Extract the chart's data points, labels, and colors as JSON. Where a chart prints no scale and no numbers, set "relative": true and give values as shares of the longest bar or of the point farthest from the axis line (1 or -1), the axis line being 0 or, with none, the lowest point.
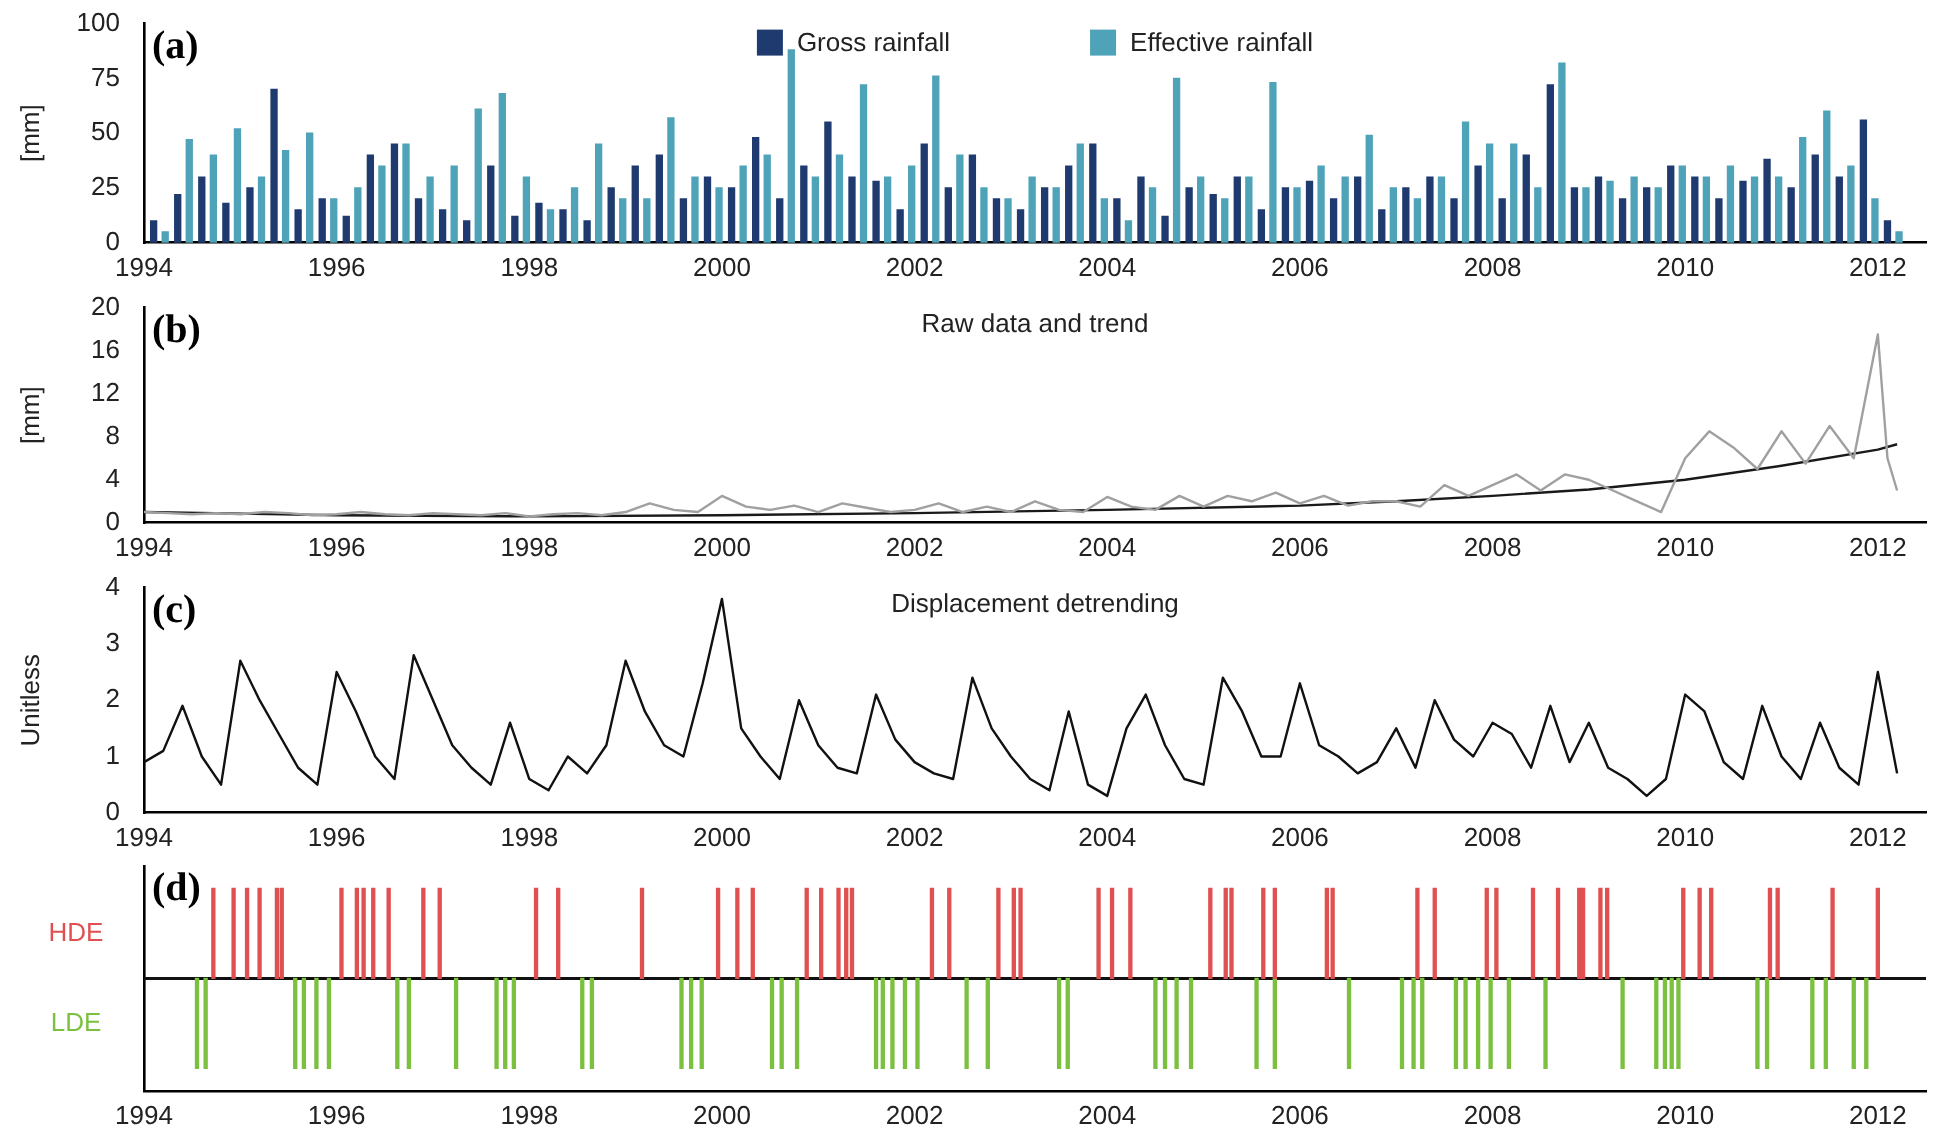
{
  "chart_data": [
    {
      "type": "bar",
      "annotations": [
        "(a)"
      ],
      "ylabel": "[mm]",
      "legend": "top",
      "grid": false,
      "xlim": [
        1994,
        2012.5
      ],
      "xticks": [
        1994,
        1996,
        1998,
        2000,
        2002,
        2004,
        2006,
        2008,
        2010,
        2012
      ],
      "ylim": [
        0,
        100
      ],
      "yticks": [
        0,
        25,
        50,
        75,
        100
      ],
      "series": [
        {
          "name": "Gross rainfall",
          "color": "#1f3a6e",
          "x": [
            1994.1,
            1994.35,
            1994.6,
            1994.85,
            1995.1,
            1995.35,
            1995.6,
            1995.85,
            1996.1,
            1996.35,
            1996.6,
            1996.85,
            1997.1,
            1997.35,
            1997.6,
            1997.85,
            1998.1,
            1998.35,
            1998.6,
            1998.85,
            1999.1,
            1999.35,
            1999.6,
            1999.85,
            2000.1,
            2000.35,
            2000.6,
            2000.85,
            2001.1,
            2001.35,
            2001.6,
            2001.85,
            2002.1,
            2002.35,
            2002.6,
            2002.85,
            2003.1,
            2003.35,
            2003.6,
            2003.85,
            2004.1,
            2004.35,
            2004.6,
            2004.85,
            2005.1,
            2005.35,
            2005.6,
            2005.85,
            2006.1,
            2006.35,
            2006.6,
            2006.85,
            2007.1,
            2007.35,
            2007.6,
            2007.85,
            2008.1,
            2008.35,
            2008.6,
            2008.85,
            2009.1,
            2009.35,
            2009.6,
            2009.85,
            2010.1,
            2010.35,
            2010.6,
            2010.85,
            2011.1,
            2011.35,
            2011.6,
            2011.85,
            2012.1
          ],
          "values": [
            10,
            22,
            30,
            18,
            25,
            70,
            15,
            20,
            12,
            40,
            45,
            20,
            15,
            10,
            35,
            12,
            18,
            15,
            10,
            25,
            35,
            40,
            20,
            30,
            25,
            48,
            20,
            35,
            55,
            30,
            28,
            15,
            45,
            25,
            40,
            20,
            15,
            25,
            35,
            45,
            20,
            30,
            12,
            25,
            22,
            30,
            15,
            25,
            28,
            20,
            30,
            15,
            25,
            30,
            20,
            35,
            20,
            40,
            72,
            25,
            30,
            20,
            25,
            35,
            30,
            20,
            28,
            38,
            25,
            40,
            30,
            56,
            10
          ]
        },
        {
          "name": "Effective rainfall",
          "color": "#4fa3b8",
          "x": [
            1994.22,
            1994.47,
            1994.72,
            1994.97,
            1995.22,
            1995.47,
            1995.72,
            1995.97,
            1996.22,
            1996.47,
            1996.72,
            1996.97,
            1997.22,
            1997.47,
            1997.72,
            1997.97,
            1998.22,
            1998.47,
            1998.72,
            1998.97,
            1999.22,
            1999.47,
            1999.72,
            1999.97,
            2000.22,
            2000.47,
            2000.72,
            2000.97,
            2001.22,
            2001.47,
            2001.72,
            2001.97,
            2002.22,
            2002.47,
            2002.72,
            2002.97,
            2003.22,
            2003.47,
            2003.72,
            2003.97,
            2004.22,
            2004.47,
            2004.72,
            2004.97,
            2005.22,
            2005.47,
            2005.72,
            2005.97,
            2006.22,
            2006.47,
            2006.72,
            2006.97,
            2007.22,
            2007.47,
            2007.72,
            2007.97,
            2008.22,
            2008.47,
            2008.72,
            2008.97,
            2009.22,
            2009.47,
            2009.72,
            2009.97,
            2010.22,
            2010.47,
            2010.72,
            2010.97,
            2011.22,
            2011.47,
            2011.72,
            2011.97,
            2012.22
          ],
          "values": [
            5,
            47,
            40,
            52,
            30,
            42,
            50,
            20,
            25,
            35,
            45,
            30,
            35,
            61,
            68,
            30,
            15,
            25,
            45,
            20,
            20,
            57,
            30,
            25,
            35,
            40,
            88,
            30,
            40,
            72,
            30,
            35,
            76,
            40,
            25,
            20,
            30,
            25,
            45,
            20,
            10,
            25,
            75,
            30,
            20,
            30,
            73,
            25,
            35,
            30,
            49,
            25,
            20,
            30,
            55,
            45,
            45,
            25,
            82,
            25,
            28,
            30,
            25,
            35,
            30,
            35,
            30,
            30,
            48,
            60,
            35,
            20,
            5
          ]
        }
      ]
    },
    {
      "type": "line",
      "title": "Raw data and trend",
      "annotations": [
        "(b)"
      ],
      "ylabel": "[mm]",
      "grid": false,
      "xlim": [
        1994,
        2012.5
      ],
      "xticks": [
        1994,
        1996,
        1998,
        2000,
        2002,
        2004,
        2006,
        2008,
        2010,
        2012
      ],
      "ylim": [
        0,
        20
      ],
      "yticks": [
        0,
        4,
        8,
        12,
        16,
        20
      ],
      "series": [
        {
          "color": "#a0a0a0",
          "x": [
            1994,
            1994.25,
            1994.5,
            1994.75,
            1995,
            1995.25,
            1995.5,
            1995.75,
            1996,
            1996.25,
            1996.5,
            1996.75,
            1997,
            1997.25,
            1997.5,
            1997.75,
            1998,
            1998.25,
            1998.5,
            1998.75,
            1999,
            1999.25,
            1999.5,
            1999.75,
            2000,
            2000.25,
            2000.5,
            2000.75,
            2001,
            2001.25,
            2001.5,
            2001.75,
            2002,
            2002.25,
            2002.5,
            2002.75,
            2003,
            2003.25,
            2003.5,
            2003.75,
            2004,
            2004.25,
            2004.5,
            2004.75,
            2005,
            2005.25,
            2005.5,
            2005.75,
            2006,
            2006.25,
            2006.5,
            2006.75,
            2007,
            2007.25,
            2007.5,
            2007.75,
            2008,
            2008.25,
            2008.5,
            2008.75,
            2009,
            2009.25,
            2009.5,
            2009.75,
            2010,
            2010.25,
            2010.5,
            2010.75,
            2011,
            2011.25,
            2011.5,
            2011.75,
            2012,
            2012.1,
            2012.2
          ],
          "values": [
            1.0,
            0.9,
            0.8,
            0.9,
            0.8,
            1.0,
            0.9,
            0.7,
            0.8,
            1.0,
            0.8,
            0.7,
            0.9,
            0.8,
            0.7,
            0.9,
            0.6,
            0.8,
            0.9,
            0.7,
            1.0,
            1.8,
            1.2,
            1.0,
            2.5,
            1.5,
            1.2,
            1.6,
            1.0,
            1.8,
            1.4,
            1.0,
            1.2,
            1.8,
            1.0,
            1.5,
            1.0,
            2.0,
            1.2,
            1.0,
            2.4,
            1.5,
            1.2,
            2.5,
            1.5,
            2.5,
            2.0,
            2.8,
            1.8,
            2.5,
            1.6,
            2.0,
            2.0,
            1.5,
            3.5,
            2.5,
            3.5,
            4.5,
            3.0,
            4.5,
            4.0,
            3.0,
            2.0,
            1.0,
            6.0,
            8.5,
            7.0,
            5.0,
            8.5,
            5.5,
            9.0,
            6.0,
            17.5,
            6.0,
            3.0
          ]
        },
        {
          "color": "#1a1a1a",
          "x": [
            1994,
            1996,
            1998,
            2000,
            2002,
            2004,
            2006,
            2007,
            2008,
            2009,
            2010,
            2011,
            2012,
            2012.2
          ],
          "values": [
            1.0,
            0.7,
            0.6,
            0.7,
            0.9,
            1.2,
            1.6,
            2.0,
            2.5,
            3.1,
            4.0,
            5.3,
            6.8,
            7.3
          ]
        }
      ]
    },
    {
      "type": "line",
      "title": "Displacement detrending",
      "annotations": [
        "(c)"
      ],
      "ylabel": "Unitless",
      "grid": false,
      "xlim": [
        1994,
        2012.5
      ],
      "xticks": [
        1994,
        1996,
        1998,
        2000,
        2002,
        2004,
        2006,
        2008,
        2010,
        2012
      ],
      "ylim": [
        0,
        4
      ],
      "yticks": [
        0,
        1,
        2,
        3,
        4
      ],
      "series": [
        {
          "color": "#111111",
          "x": [
            1994,
            1994.2,
            1994.4,
            1994.6,
            1994.8,
            1995,
            1995.2,
            1995.4,
            1995.6,
            1995.8,
            1996,
            1996.2,
            1996.4,
            1996.6,
            1996.8,
            1997,
            1997.2,
            1997.4,
            1997.6,
            1997.8,
            1998,
            1998.2,
            1998.4,
            1998.6,
            1998.8,
            1999,
            1999.2,
            1999.4,
            1999.6,
            1999.8,
            2000,
            2000.2,
            2000.4,
            2000.6,
            2000.8,
            2001,
            2001.2,
            2001.4,
            2001.6,
            2001.8,
            2002,
            2002.2,
            2002.4,
            2002.6,
            2002.8,
            2003,
            2003.2,
            2003.4,
            2003.6,
            2003.8,
            2004,
            2004.2,
            2004.4,
            2004.6,
            2004.8,
            2005,
            2005.2,
            2005.4,
            2005.6,
            2005.8,
            2006,
            2006.2,
            2006.4,
            2006.6,
            2006.8,
            2007,
            2007.2,
            2007.4,
            2007.6,
            2007.8,
            2008,
            2008.2,
            2008.4,
            2008.6,
            2008.8,
            2009,
            2009.2,
            2009.4,
            2009.6,
            2009.8,
            2010,
            2010.2,
            2010.4,
            2010.6,
            2010.8,
            2011,
            2011.2,
            2011.4,
            2011.6,
            2011.8,
            2012,
            2012.2
          ],
          "values": [
            0.9,
            1.1,
            1.9,
            1.0,
            0.5,
            2.7,
            2.0,
            1.4,
            0.8,
            0.5,
            2.5,
            1.8,
            1.0,
            0.6,
            2.8,
            2.0,
            1.2,
            0.8,
            0.5,
            1.6,
            0.6,
            0.4,
            1.0,
            0.7,
            1.2,
            2.7,
            1.8,
            1.2,
            1.0,
            2.3,
            3.8,
            1.5,
            1.0,
            0.6,
            2.0,
            1.2,
            0.8,
            0.7,
            2.1,
            1.3,
            0.9,
            0.7,
            0.6,
            2.4,
            1.5,
            1.0,
            0.6,
            0.4,
            1.8,
            0.5,
            0.3,
            1.5,
            2.1,
            1.2,
            0.6,
            0.5,
            2.4,
            1.8,
            1.0,
            1.0,
            2.3,
            1.2,
            1.0,
            0.7,
            0.9,
            1.5,
            0.8,
            2.0,
            1.3,
            1.0,
            1.6,
            1.4,
            0.8,
            1.9,
            0.9,
            1.6,
            0.8,
            0.6,
            0.3,
            0.6,
            2.1,
            1.8,
            0.9,
            0.6,
            1.9,
            1.0,
            0.6,
            1.6,
            0.8,
            0.5,
            2.5,
            0.7
          ]
        }
      ]
    },
    {
      "type": "bar",
      "annotations": [
        "(d)"
      ],
      "grid": false,
      "relative": true,
      "xlim": [
        1994,
        2012.5
      ],
      "xticks": [
        1994,
        1996,
        1998,
        2000,
        2002,
        2004,
        2006,
        2008,
        2010,
        2012
      ],
      "series": [
        {
          "name": "HDE",
          "color": "#e05050",
          "x": [
            1994.72,
            1994.93,
            1995.07,
            1995.2,
            1995.38,
            1995.43,
            1996.05,
            1996.21,
            1996.28,
            1996.38,
            1996.54,
            1996.9,
            1997.07,
            1998.07,
            1998.3,
            1999.17,
            1999.96,
            2000.16,
            2000.32,
            2000.88,
            2001.03,
            2001.21,
            2001.29,
            2001.35,
            2002.18,
            2002.36,
            2002.87,
            2003.03,
            2003.1,
            2003.91,
            2004.05,
            2004.24,
            2005.07,
            2005.23,
            2005.29,
            2005.62,
            2005.74,
            2006.28,
            2006.34,
            2007.22,
            2007.4,
            2007.94,
            2008.04,
            2008.42,
            2008.68,
            2008.9,
            2008.94,
            2009.12,
            2009.19,
            2009.98,
            2010.15,
            2010.27,
            2010.88,
            2010.96,
            2011.53,
            2012.0
          ],
          "values": [
            1,
            1,
            1,
            1,
            1,
            1,
            1,
            1,
            1,
            1,
            1,
            1,
            1,
            1,
            1,
            1,
            1,
            1,
            1,
            1,
            1,
            1,
            1,
            1,
            1,
            1,
            1,
            1,
            1,
            1,
            1,
            1,
            1,
            1,
            1,
            1,
            1,
            1,
            1,
            1,
            1,
            1,
            1,
            1,
            1,
            1,
            1,
            1,
            1,
            1,
            1,
            1,
            1,
            1,
            1,
            1
          ]
        },
        {
          "name": "LDE",
          "color": "#7cc040",
          "x": [
            1994.55,
            1994.64,
            1995.57,
            1995.66,
            1995.79,
            1995.92,
            1996.63,
            1996.75,
            1997.24,
            1997.66,
            1997.75,
            1997.84,
            1998.55,
            1998.65,
            1999.58,
            1999.68,
            1999.79,
            2000.52,
            2000.62,
            2000.78,
            2001.6,
            2001.67,
            2001.77,
            2001.9,
            2002.03,
            2002.54,
            2002.76,
            2003.5,
            2003.59,
            2004.5,
            2004.6,
            2004.72,
            2004.87,
            2005.55,
            2005.74,
            2006.51,
            2007.06,
            2007.18,
            2007.27,
            2007.62,
            2007.72,
            2007.85,
            2007.98,
            2008.17,
            2008.55,
            2009.35,
            2009.7,
            2009.79,
            2009.86,
            2009.93,
            2010.75,
            2010.85,
            2011.32,
            2011.46,
            2011.75,
            2011.88
          ],
          "values": [
            -1,
            -1,
            -1,
            -1,
            -1,
            -1,
            -1,
            -1,
            -1,
            -1,
            -1,
            -1,
            -1,
            -1,
            -1,
            -1,
            -1,
            -1,
            -1,
            -1,
            -1,
            -1,
            -1,
            -1,
            -1,
            -1,
            -1,
            -1,
            -1,
            -1,
            -1,
            -1,
            -1,
            -1,
            -1,
            -1,
            -1,
            -1,
            -1,
            -1,
            -1,
            -1,
            -1,
            -1,
            -1,
            -1,
            -1,
            -1,
            -1,
            -1,
            -1,
            -1,
            -1,
            -1,
            -1,
            -1
          ]
        }
      ]
    }
  ]
}
